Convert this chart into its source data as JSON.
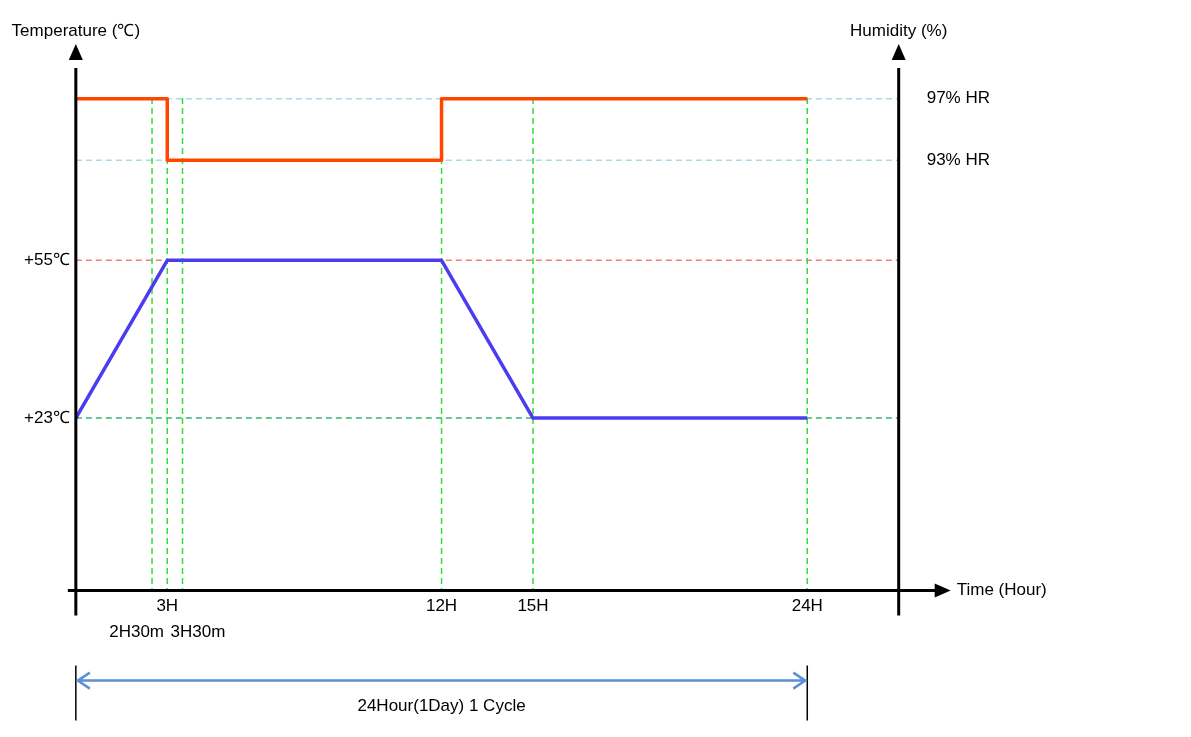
{
  "chart_data": {
    "type": "line",
    "xlabel": "Time (Hour)",
    "ylabel": "Temperature (℃)",
    "y2label": "Humidity (%)",
    "xlim": [
      0,
      27
    ],
    "xticks": [
      {
        "value": 3,
        "label": "3H"
      },
      {
        "value": 12,
        "label": "12H"
      },
      {
        "value": 15,
        "label": "15H"
      },
      {
        "value": 24,
        "label": "24H"
      }
    ],
    "ylim": [
      -12,
      94
    ],
    "yticks": [
      {
        "value": 23,
        "label": "+23℃"
      },
      {
        "value": 55,
        "label": "+55℃"
      }
    ],
    "y2lim": [
      65,
      99
    ],
    "y2ticks": [
      {
        "value": 93,
        "label": "93% HR"
      },
      {
        "value": 97,
        "label": "97% HR"
      }
    ],
    "series": [
      {
        "axis": "y2",
        "color": "#ff4500",
        "x": [
          0,
          3,
          3,
          12,
          12,
          24
        ],
        "values": [
          97,
          97,
          93,
          93,
          97,
          97
        ]
      },
      {
        "axis": "y",
        "color": "#4b3cf0",
        "x": [
          0,
          3,
          12,
          15,
          24
        ],
        "values": [
          23,
          55,
          55,
          23,
          23
        ]
      }
    ],
    "ref_lines": [
      {
        "axis": "y2",
        "value": 97,
        "color": "#add8e6",
        "line_style": "dashed"
      },
      {
        "axis": "y2",
        "value": 93,
        "color": "#add8e6",
        "line_style": "dashed"
      },
      {
        "axis": "y",
        "value": 55,
        "color": "#f08080",
        "line_style": "dashed"
      },
      {
        "axis": "y",
        "value": 23,
        "color": "#3cb371",
        "line_style": "dashed"
      },
      {
        "axis": "x",
        "value": 2.5,
        "label": "2H30m",
        "color": "#33dd33",
        "line_style": "dashed"
      },
      {
        "axis": "x",
        "value": 3,
        "color": "#33dd33",
        "line_style": "dashed"
      },
      {
        "axis": "x",
        "value": 3.5,
        "label": "3H30m",
        "color": "#33dd33",
        "line_style": "dashed"
      },
      {
        "axis": "x",
        "value": 12,
        "color": "#33dd33",
        "line_style": "dashed"
      },
      {
        "axis": "x",
        "value": 15,
        "color": "#33dd33",
        "line_style": "dashed"
      },
      {
        "axis": "x",
        "value": 24,
        "color": "#33dd33",
        "line_style": "dashed"
      }
    ],
    "annotations": [
      "24Hour(1Day) 1 Cycle"
    ],
    "grid": false,
    "legend": false,
    "marker": "none",
    "line_style": "solid"
  }
}
